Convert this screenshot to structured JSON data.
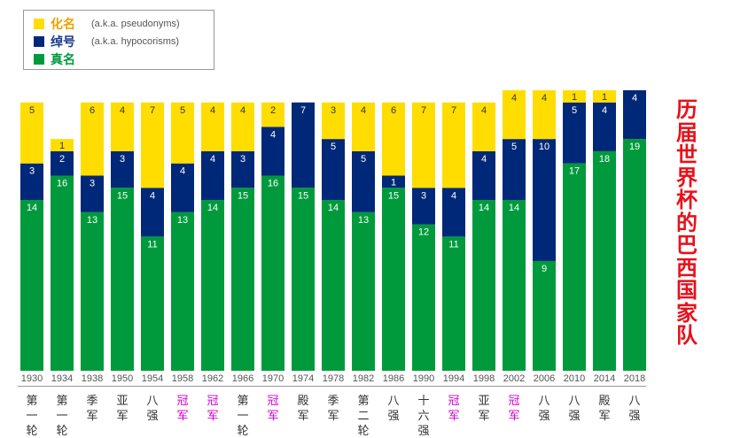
{
  "colors": {
    "pseudonym": "#ffdd00",
    "hypocorism": "#002878",
    "realname": "#009a3d",
    "legend_pseudonym_text": "#f0a000",
    "legend_hypocorism_text": "#1a3a8c",
    "legend_realname_text": "#009a3d",
    "result_normal": "#333333",
    "result_champion": "#cc00cc",
    "side_title": "#e8101a"
  },
  "legend": {
    "items": [
      {
        "key": "pseudonym",
        "label": "化名",
        "note": "(a.k.a. pseudonyms)"
      },
      {
        "key": "hypocorism",
        "label": "绰号",
        "note": "(a.k.a. hypocorisms)"
      },
      {
        "key": "realname",
        "label": "真名",
        "note": ""
      }
    ]
  },
  "side_title": "历届世界杯的巴西国家队",
  "chart_data": {
    "type": "bar",
    "stacked": true,
    "normalized_total": 23,
    "categories": [
      "1930",
      "1934",
      "1938",
      "1950",
      "1954",
      "1958",
      "1962",
      "1966",
      "1970",
      "1974",
      "1978",
      "1982",
      "1986",
      "1990",
      "1994",
      "1998",
      "2002",
      "2006",
      "2010",
      "2014",
      "2018"
    ],
    "results": [
      "第一轮",
      "第一轮",
      "季军",
      "亚军",
      "八强",
      "冠军",
      "冠军",
      "第一轮",
      "冠军",
      "殿军",
      "季军",
      "第二轮",
      "八强",
      "十六强",
      "冠军",
      "亚军",
      "冠军",
      "八强",
      "八强",
      "殿军",
      "八强"
    ],
    "champion_flags": [
      false,
      false,
      false,
      false,
      false,
      true,
      true,
      false,
      true,
      false,
      false,
      false,
      false,
      false,
      true,
      false,
      true,
      false,
      false,
      false,
      false
    ],
    "series": [
      {
        "name": "真名",
        "key": "realname",
        "values": [
          14,
          16,
          13,
          15,
          11,
          13,
          14,
          15,
          16,
          15,
          14,
          13,
          15,
          12,
          11,
          14,
          14,
          9,
          17,
          18,
          19
        ]
      },
      {
        "name": "绰号",
        "key": "hypocorism",
        "values": [
          3,
          2,
          3,
          3,
          4,
          4,
          4,
          3,
          4,
          7,
          5,
          5,
          1,
          3,
          4,
          4,
          5,
          10,
          5,
          4,
          4
        ]
      },
      {
        "name": "化名",
        "key": "pseudonym",
        "values": [
          5,
          1,
          6,
          4,
          7,
          5,
          4,
          4,
          2,
          0,
          3,
          4,
          6,
          7,
          7,
          4,
          4,
          4,
          1,
          1,
          0
        ]
      }
    ]
  }
}
